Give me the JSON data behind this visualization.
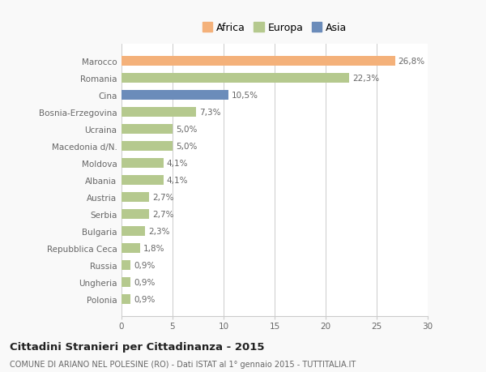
{
  "categories": [
    "Polonia",
    "Ungheria",
    "Russia",
    "Repubblica Ceca",
    "Bulgaria",
    "Serbia",
    "Austria",
    "Albania",
    "Moldova",
    "Macedonia d/N.",
    "Ucraina",
    "Bosnia-Erzegovina",
    "Cina",
    "Romania",
    "Marocco"
  ],
  "values": [
    0.9,
    0.9,
    0.9,
    1.8,
    2.3,
    2.7,
    2.7,
    4.1,
    4.1,
    5.0,
    5.0,
    7.3,
    10.5,
    22.3,
    26.8
  ],
  "labels": [
    "0,9%",
    "0,9%",
    "0,9%",
    "1,8%",
    "2,3%",
    "2,7%",
    "2,7%",
    "4,1%",
    "4,1%",
    "5,0%",
    "5,0%",
    "7,3%",
    "10,5%",
    "22,3%",
    "26,8%"
  ],
  "colors": [
    "#b5c98e",
    "#b5c98e",
    "#b5c98e",
    "#b5c98e",
    "#b5c98e",
    "#b5c98e",
    "#b5c98e",
    "#b5c98e",
    "#b5c98e",
    "#b5c98e",
    "#b5c98e",
    "#b5c98e",
    "#6b8cba",
    "#b5c98e",
    "#f4b17a"
  ],
  "continent_colors": {
    "Africa": "#f4b17a",
    "Europa": "#b5c98e",
    "Asia": "#6b8cba"
  },
  "xlim": [
    0,
    30
  ],
  "xticks": [
    0,
    5,
    10,
    15,
    20,
    25,
    30
  ],
  "title": "Cittadini Stranieri per Cittadinanza - 2015",
  "subtitle": "COMUNE DI ARIANO NEL POLESINE (RO) - Dati ISTAT al 1° gennaio 2015 - TUTTITALIA.IT",
  "background_color": "#f9f9f9",
  "bar_background": "#ffffff",
  "grid_color": "#cccccc",
  "label_fontsize": 7.5,
  "tick_fontsize": 7.5,
  "title_fontsize": 9.5,
  "subtitle_fontsize": 7.0,
  "bar_height": 0.55
}
